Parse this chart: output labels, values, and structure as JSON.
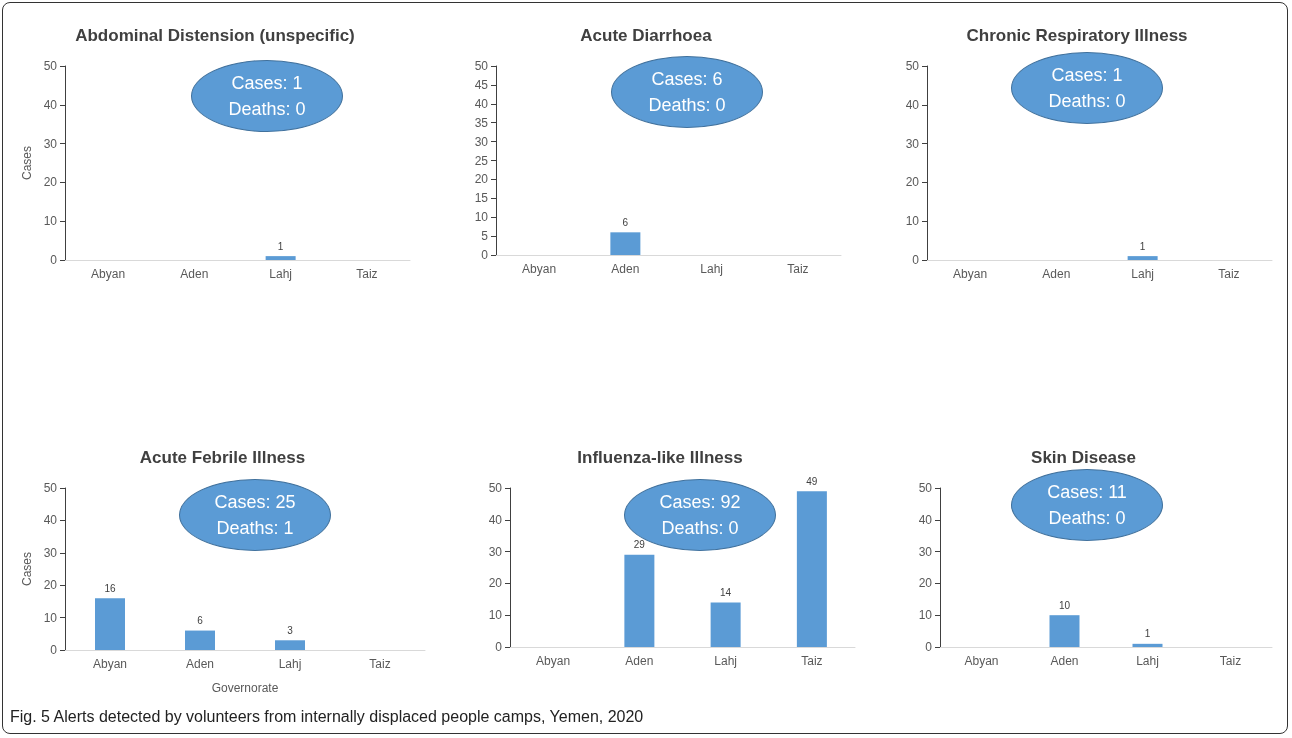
{
  "chart_data": [
    {
      "type": "bar",
      "title": "Abdominal Distension (unspecific)",
      "ylabel": "Cases",
      "categories": [
        "Abyan",
        "Aden",
        "Lahj",
        "Taiz"
      ],
      "values": [
        0,
        0,
        1,
        0
      ],
      "value_labels": [
        null,
        null,
        "1",
        null
      ],
      "color": "#5b9bd5",
      "ylim": [
        0,
        50
      ],
      "yticks": [
        0,
        10,
        20,
        30,
        40,
        50
      ],
      "grid": false,
      "annotations": [
        "Cases: 1\nDeaths: 0",
        "Fig. 5 Alerts detected by volunteers from internally displaced people camps, Yemen, 2020"
      ]
    },
    {
      "type": "bar",
      "title": "Acute Diarrhoea",
      "categories": [
        "Abyan",
        "Aden",
        "Lahj",
        "Taiz"
      ],
      "values": [
        0,
        6,
        0,
        0
      ],
      "value_labels": [
        null,
        "6",
        null,
        null
      ],
      "color": "#5b9bd5",
      "ylim": [
        0,
        50
      ],
      "yticks": [
        0,
        5,
        10,
        15,
        20,
        25,
        30,
        35,
        40,
        45,
        50
      ],
      "grid": false,
      "annotations": [
        "Cases: 6\nDeaths: 0"
      ]
    },
    {
      "type": "bar",
      "title": "Chronic Respiratory Illness",
      "categories": [
        "Abyan",
        "Aden",
        "Lahj",
        "Taiz"
      ],
      "values": [
        0,
        0,
        1,
        0
      ],
      "value_labels": [
        null,
        null,
        "1",
        null
      ],
      "color": "#5b9bd5",
      "ylim": [
        0,
        50
      ],
      "yticks": [
        0,
        10,
        20,
        30,
        40,
        50
      ],
      "grid": false,
      "annotations": [
        "Cases: 1\nDeaths: 0"
      ]
    },
    {
      "type": "bar",
      "title": "Acute Febrile Illness",
      "ylabel": "Cases",
      "xlabel": "Governorate",
      "categories": [
        "Abyan",
        "Aden",
        "Lahj",
        "Taiz"
      ],
      "values": [
        16,
        6,
        3,
        0
      ],
      "value_labels": [
        "16",
        "6",
        "3",
        null
      ],
      "color": "#5b9bd5",
      "ylim": [
        0,
        50
      ],
      "yticks": [
        0,
        10,
        20,
        30,
        40,
        50
      ],
      "grid": false,
      "annotations": [
        "Cases: 25\nDeaths: 1"
      ]
    },
    {
      "type": "bar",
      "title": "Influenza-like Illness",
      "categories": [
        "Abyan",
        "Aden",
        "Lahj",
        "Taiz"
      ],
      "values": [
        0,
        29,
        14,
        49
      ],
      "value_labels": [
        null,
        "29",
        "14",
        "49"
      ],
      "color": "#5b9bd5",
      "ylim": [
        0,
        50
      ],
      "yticks": [
        0,
        10,
        20,
        30,
        40,
        50
      ],
      "grid": false,
      "annotations": [
        "Cases: 92\nDeaths: 0"
      ]
    },
    {
      "type": "bar",
      "title": "Skin Disease",
      "categories": [
        "Abyan",
        "Aden",
        "Lahj",
        "Taiz"
      ],
      "values": [
        0,
        10,
        1,
        0
      ],
      "value_labels": [
        null,
        "10",
        "1",
        null
      ],
      "color": "#5b9bd5",
      "ylim": [
        0,
        50
      ],
      "yticks": [
        0,
        10,
        20,
        30,
        40,
        50
      ],
      "grid": false,
      "annotations": [
        "Cases: 11\nDeaths: 0"
      ]
    }
  ]
}
